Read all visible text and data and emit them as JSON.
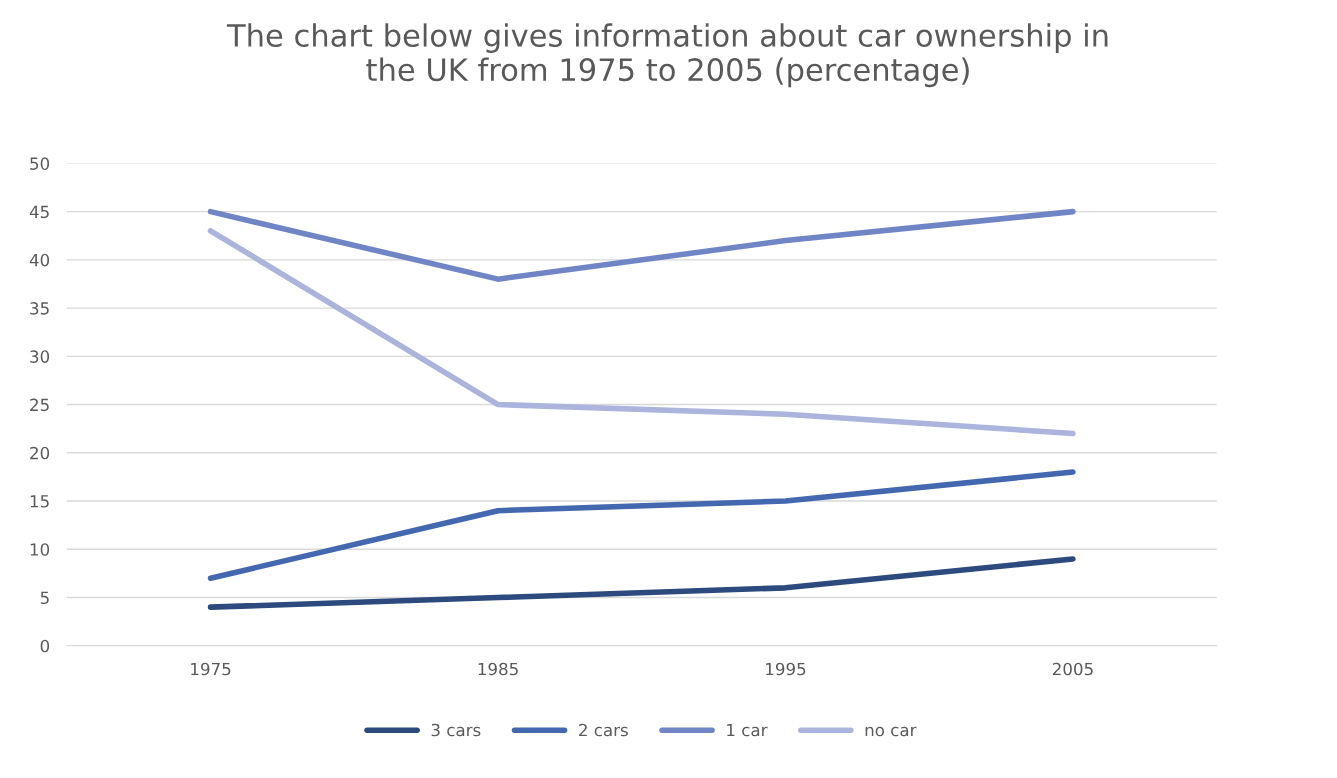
{
  "chart_data": {
    "type": "line",
    "title": "The chart below gives information about car ownership in\nthe UK from 1975 to 2005 (percentage)",
    "categories": [
      "1975",
      "1985",
      "1995",
      "2005"
    ],
    "series": [
      {
        "name": "3 cars",
        "color": "#2c4a7e",
        "values": [
          4,
          5,
          6,
          9
        ]
      },
      {
        "name": "2 cars",
        "color": "#4468b0",
        "values": [
          7,
          14,
          15,
          18
        ]
      },
      {
        "name": "1 car",
        "color": "#7085c6",
        "values": [
          45,
          38,
          42,
          45
        ]
      },
      {
        "name": "no car",
        "color": "#aab4dc",
        "values": [
          43,
          25,
          24,
          22
        ]
      }
    ],
    "ylim": [
      0,
      50
    ],
    "yticks": [
      0,
      5,
      10,
      15,
      20,
      25,
      30,
      35,
      40,
      45,
      50
    ],
    "grid": "y",
    "legend": "bottom",
    "marker": "none",
    "line_style": "solid"
  }
}
